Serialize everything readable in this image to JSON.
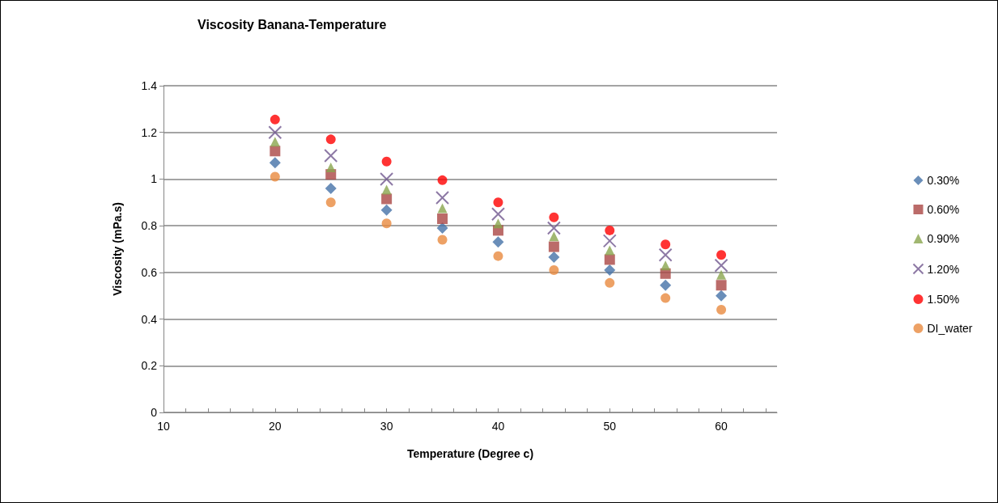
{
  "chart_data": {
    "type": "scatter",
    "title": "Viscosity Banana-Temperature",
    "xlabel": "Temperature (Degree c)",
    "ylabel": "Viscosity (mPa.s)",
    "x": [
      20,
      25,
      30,
      35,
      40,
      45,
      50,
      55,
      60
    ],
    "series": [
      {
        "name": "0.30%",
        "color": "#4572a7",
        "marker": "diamond",
        "values": [
          1.07,
          0.96,
          0.867,
          0.79,
          0.73,
          0.665,
          0.61,
          0.545,
          0.5
        ]
      },
      {
        "name": "0.60%",
        "color": "#aa4643",
        "marker": "square",
        "values": [
          1.12,
          1.02,
          0.915,
          0.83,
          0.78,
          0.71,
          0.655,
          0.595,
          0.545
        ]
      },
      {
        "name": "0.90%",
        "color": "#89a54e",
        "marker": "triangle",
        "values": [
          1.16,
          1.05,
          0.955,
          0.875,
          0.81,
          0.755,
          0.695,
          0.63,
          0.59
        ]
      },
      {
        "name": "1.20%",
        "color": "#71588f",
        "marker": "cross",
        "values": [
          1.2,
          1.1,
          1.0,
          0.92,
          0.85,
          0.79,
          0.735,
          0.675,
          0.63
        ]
      },
      {
        "name": "1.50%",
        "color": "#ff0000",
        "marker": "circle",
        "values": [
          1.255,
          1.17,
          1.075,
          0.995,
          0.9,
          0.836,
          0.78,
          0.72,
          0.675
        ]
      },
      {
        "name": "DI_water",
        "color": "#e8893f",
        "marker": "circle",
        "values": [
          1.01,
          0.9,
          0.81,
          0.74,
          0.67,
          0.61,
          0.555,
          0.49,
          0.44
        ]
      }
    ],
    "xlim": [
      10,
      65
    ],
    "xticks": [
      10,
      {
        "value": 12,
        "label": null
      },
      {
        "value": 14,
        "label": null
      },
      {
        "value": 16,
        "label": null
      },
      {
        "value": 18,
        "label": null
      },
      20,
      {
        "value": 22,
        "label": null
      },
      {
        "value": 24,
        "label": null
      },
      {
        "value": 26,
        "label": null
      },
      {
        "value": 28,
        "label": null
      },
      30,
      {
        "value": 32,
        "label": null
      },
      {
        "value": 34,
        "label": null
      },
      {
        "value": 36,
        "label": null
      },
      {
        "value": 38,
        "label": null
      },
      40,
      {
        "value": 42,
        "label": null
      },
      {
        "value": 44,
        "label": null
      },
      {
        "value": 46,
        "label": null
      },
      {
        "value": 48,
        "label": null
      },
      50,
      {
        "value": 52,
        "label": null
      },
      {
        "value": 54,
        "label": null
      },
      {
        "value": 56,
        "label": null
      },
      {
        "value": 58,
        "label": null
      },
      60,
      {
        "value": 62,
        "label": null
      },
      {
        "value": 64,
        "label": null
      }
    ],
    "ylim": [
      0,
      1.4
    ],
    "yticks": [
      0,
      0.2,
      0.4,
      0.6,
      0.8,
      1,
      1.2,
      1.4
    ],
    "grid": "y",
    "legend": "right"
  }
}
